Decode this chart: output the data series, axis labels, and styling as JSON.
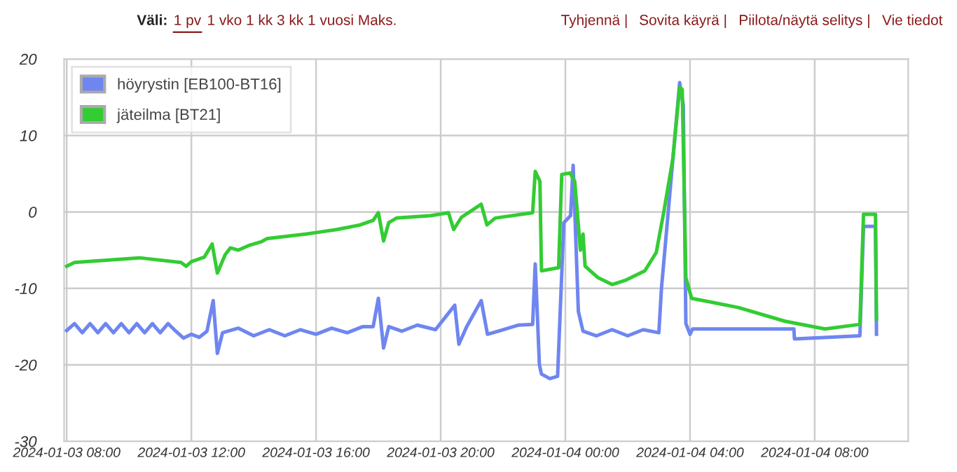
{
  "chart_data": {
    "type": "line",
    "annotations": [
      "Väli:",
      "1 pv",
      "1 vko 1 kk 3 kk 1 vuosi Maks.",
      "Tyhjennä |",
      "Sovita käyrä |",
      "Piilota/näytä selitys |",
      "Vie tiedot"
    ],
    "xlim": [
      "2024-01-03T07:55",
      "2024-01-04T11:00"
    ],
    "xticks": [
      {
        "value": "2024-01-03T08:00",
        "label": "2024-01-03 08:00"
      },
      {
        "value": "2024-01-03T12:00",
        "label": "2024-01-03 12:00"
      },
      {
        "value": "2024-01-03T16:00",
        "label": "2024-01-03 16:00"
      },
      {
        "value": "2024-01-03T20:00",
        "label": "2024-01-03 20:00"
      },
      {
        "value": "2024-01-04T00:00",
        "label": "2024-01-04 00:00"
      },
      {
        "value": "2024-01-04T04:00",
        "label": "2024-01-04 04:00"
      },
      {
        "value": "2024-01-04T08:00",
        "label": "2024-01-04 08:00"
      }
    ],
    "ylim": [
      -30,
      20
    ],
    "yticks": [
      -30,
      -20,
      -10,
      0,
      10,
      20
    ],
    "grid": true,
    "legend": "top left",
    "marker": "none",
    "line_style": "solid",
    "series": [
      {
        "name": "höyrystin [EB100-BT16]",
        "color": "#6f86f0",
        "x": [
          "2024-01-03T08:00",
          "2024-01-03T08:15",
          "2024-01-03T08:30",
          "2024-01-03T08:45",
          "2024-01-03T09:00",
          "2024-01-03T09:15",
          "2024-01-03T09:30",
          "2024-01-03T09:45",
          "2024-01-03T10:00",
          "2024-01-03T10:15",
          "2024-01-03T10:30",
          "2024-01-03T10:45",
          "2024-01-03T11:00",
          "2024-01-03T11:15",
          "2024-01-03T11:30",
          "2024-01-03T11:45",
          "2024-01-03T12:00",
          "2024-01-03T12:15",
          "2024-01-03T12:30",
          "2024-01-03T12:42",
          "2024-01-03T12:50",
          "2024-01-03T13:00",
          "2024-01-03T13:30",
          "2024-01-03T14:00",
          "2024-01-03T14:30",
          "2024-01-03T15:00",
          "2024-01-03T15:30",
          "2024-01-03T16:00",
          "2024-01-03T16:30",
          "2024-01-03T17:00",
          "2024-01-03T17:30",
          "2024-01-03T17:50",
          "2024-01-03T18:00",
          "2024-01-03T18:10",
          "2024-01-03T18:20",
          "2024-01-03T18:45",
          "2024-01-03T19:15",
          "2024-01-03T19:50",
          "2024-01-03T20:27",
          "2024-01-03T20:35",
          "2024-01-03T20:50",
          "2024-01-03T21:18",
          "2024-01-03T21:30",
          "2024-01-03T22:00",
          "2024-01-03T22:30",
          "2024-01-03T22:57",
          "2024-01-03T23:02",
          "2024-01-03T23:10",
          "2024-01-03T23:14",
          "2024-01-03T23:30",
          "2024-01-03T23:45",
          "2024-01-03T23:57",
          "2024-01-04T00:10",
          "2024-01-04T00:15",
          "2024-01-04T00:25",
          "2024-01-04T00:34",
          "2024-01-04T01:00",
          "2024-01-04T01:30",
          "2024-01-04T02:00",
          "2024-01-04T02:30",
          "2024-01-04T03:00",
          "2024-01-04T03:05",
          "2024-01-04T03:40",
          "2024-01-04T03:47",
          "2024-01-04T03:52",
          "2024-01-04T04:00",
          "2024-01-04T04:05",
          "2024-01-04T07:20",
          "2024-01-04T07:21",
          "2024-01-04T09:27",
          "2024-01-04T09:34",
          "2024-01-04T09:57",
          "2024-01-04T09:59"
        ],
        "values": [
          -15.5,
          -14.6,
          -15.8,
          -14.6,
          -15.8,
          -14.6,
          -15.8,
          -14.6,
          -15.8,
          -14.6,
          -15.8,
          -14.6,
          -15.8,
          -14.6,
          -15.6,
          -16.5,
          -16.0,
          -16.4,
          -15.6,
          -11.6,
          -18.5,
          -15.8,
          -15.2,
          -16.2,
          -15.4,
          -16.2,
          -15.4,
          -16.0,
          -15.2,
          -15.8,
          -15.0,
          -15.0,
          -11.3,
          -17.8,
          -15.0,
          -15.6,
          -14.8,
          -15.4,
          -12.2,
          -17.3,
          -15.0,
          -11.6,
          -16.0,
          -15.4,
          -14.8,
          -14.7,
          -6.8,
          -20.0,
          -21.2,
          -21.8,
          -21.5,
          -1.4,
          -0.5,
          6.1,
          -13.0,
          -15.6,
          -16.2,
          -15.4,
          -16.2,
          -15.4,
          -15.8,
          -10.0,
          16.9,
          14.0,
          -14.6,
          -16.0,
          -15.3,
          -15.3,
          -16.6,
          -16.2,
          -1.9,
          -1.9,
          -16.0
        ]
      },
      {
        "name": "jäteilma [BT21]",
        "color": "#33cc33",
        "x": [
          "2024-01-03T08:00",
          "2024-01-03T08:15",
          "2024-01-03T10:20",
          "2024-01-03T11:40",
          "2024-01-03T11:50",
          "2024-01-03T12:00",
          "2024-01-03T12:25",
          "2024-01-03T12:40",
          "2024-01-03T12:50",
          "2024-01-03T13:05",
          "2024-01-03T13:15",
          "2024-01-03T13:30",
          "2024-01-03T13:50",
          "2024-01-03T14:15",
          "2024-01-03T14:25",
          "2024-01-03T15:40",
          "2024-01-03T16:00",
          "2024-01-03T16:40",
          "2024-01-03T17:25",
          "2024-01-03T17:50",
          "2024-01-03T18:00",
          "2024-01-03T18:10",
          "2024-01-03T18:20",
          "2024-01-03T18:35",
          "2024-01-03T19:40",
          "2024-01-03T20:15",
          "2024-01-03T20:25",
          "2024-01-03T20:40",
          "2024-01-03T21:18",
          "2024-01-03T21:29",
          "2024-01-03T21:45",
          "2024-01-03T22:57",
          "2024-01-03T23:02",
          "2024-01-03T23:11",
          "2024-01-03T23:14",
          "2024-01-03T23:47",
          "2024-01-03T23:53",
          "2024-01-04T00:09",
          "2024-01-04T00:18",
          "2024-01-04T00:29",
          "2024-01-04T00:34",
          "2024-01-04T00:38",
          "2024-01-04T01:03",
          "2024-01-04T01:30",
          "2024-01-04T01:57",
          "2024-01-04T02:33",
          "2024-01-04T02:55",
          "2024-01-04T03:09",
          "2024-01-04T03:27",
          "2024-01-04T03:40",
          "2024-01-04T03:45",
          "2024-01-04T03:52",
          "2024-01-04T04:03",
          "2024-01-04T05:33",
          "2024-01-04T07:03",
          "2024-01-04T08:20",
          "2024-01-04T09:27",
          "2024-01-04T09:34",
          "2024-01-04T09:57",
          "2024-01-04T09:59"
        ],
        "values": [
          -7.1,
          -6.6,
          -6.0,
          -6.6,
          -7.1,
          -6.5,
          -5.9,
          -4.2,
          -8.0,
          -5.6,
          -4.7,
          -5.0,
          -4.4,
          -3.9,
          -3.5,
          -2.9,
          -2.7,
          -2.3,
          -1.7,
          -1.1,
          -0.1,
          -3.8,
          -1.4,
          -0.8,
          -0.5,
          -0.1,
          -2.3,
          -0.7,
          1.0,
          -1.7,
          -0.8,
          -0.1,
          5.3,
          4.0,
          -7.7,
          -7.3,
          4.9,
          5.1,
          4.0,
          -5.0,
          -2.9,
          -7.1,
          -8.6,
          -9.5,
          -8.9,
          -7.7,
          -5.3,
          -0.2,
          7.0,
          16.3,
          16.0,
          -8.6,
          -11.3,
          -12.5,
          -14.3,
          -15.3,
          -14.7,
          -0.3,
          -0.3,
          -14.0
        ]
      }
    ]
  }
}
